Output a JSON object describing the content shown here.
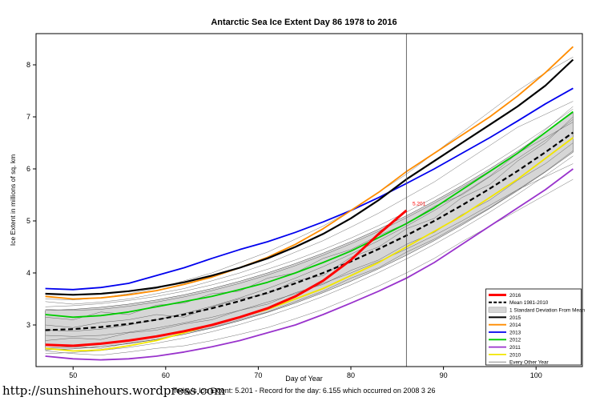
{
  "page": {
    "title": "Antarctic Sea Ice Extent Day 86 1978 to 2016",
    "footer": "Today's Ice Extent: 5.201  - Record for the day: 6.155 which occurred on 2008 3 26",
    "watermark_url": "http://sunshinehours.wordpress.com"
  },
  "chart_data": {
    "type": "line",
    "title": "Antarctic Sea Ice Extent Day 86 1978 to 2016",
    "xlabel": "Day of Year",
    "ylabel": "Ice Extent in millions of sq. km",
    "xlim": [
      46,
      105
    ],
    "ylim": [
      2.2,
      8.6
    ],
    "xticks": [
      50,
      60,
      70,
      80,
      90,
      100
    ],
    "yticks": [
      3,
      4,
      5,
      6,
      7,
      8
    ],
    "marker_line_x": 86,
    "annotation": {
      "text": "5.201",
      "x": 86.4,
      "y": 5.3,
      "color": "#ff0000"
    },
    "x": [
      47,
      50,
      53,
      56,
      59,
      62,
      65,
      68,
      71,
      74,
      77,
      80,
      83,
      86,
      89,
      92,
      95,
      98,
      101,
      104
    ],
    "mean": {
      "name": "Mean 1981-2010",
      "color": "#000000",
      "dashed": true,
      "values": [
        2.9,
        2.92,
        2.96,
        3.02,
        3.1,
        3.2,
        3.32,
        3.46,
        3.62,
        3.8,
        4.0,
        4.22,
        4.46,
        4.72,
        5.0,
        5.3,
        5.62,
        5.96,
        6.32,
        6.7
      ]
    },
    "band": {
      "name": "1 Standard Deviation From Mean",
      "std": 0.38,
      "fill": "#d6d6d6",
      "edge": "#444444"
    },
    "series": [
      {
        "name": "2016",
        "color": "#ff0000",
        "width": 3,
        "values": [
          2.62,
          2.6,
          2.64,
          2.7,
          2.78,
          2.88,
          3.0,
          3.15,
          3.32,
          3.55,
          3.85,
          4.25,
          4.75,
          5.201
        ]
      },
      {
        "name": "2015",
        "color": "#000000",
        "width": 2.2,
        "values": [
          3.6,
          3.58,
          3.6,
          3.65,
          3.72,
          3.82,
          3.95,
          4.1,
          4.28,
          4.5,
          4.75,
          5.05,
          5.4,
          5.8,
          6.15,
          6.5,
          6.85,
          7.2,
          7.6,
          8.1
        ]
      },
      {
        "name": "2014",
        "color": "#ff8c00",
        "width": 1.8,
        "values": [
          3.55,
          3.5,
          3.52,
          3.58,
          3.66,
          3.78,
          3.92,
          4.1,
          4.3,
          4.55,
          4.85,
          5.2,
          5.55,
          5.95,
          6.3,
          6.65,
          7.0,
          7.4,
          7.85,
          8.35
        ]
      },
      {
        "name": "2013",
        "color": "#0000ee",
        "width": 1.8,
        "values": [
          3.7,
          3.68,
          3.72,
          3.8,
          3.95,
          4.1,
          4.28,
          4.45,
          4.6,
          4.78,
          4.98,
          5.2,
          5.45,
          5.72,
          6.0,
          6.3,
          6.6,
          6.92,
          7.25,
          7.55
        ]
      },
      {
        "name": "2012",
        "color": "#00cc00",
        "width": 1.8,
        "values": [
          3.2,
          3.15,
          3.18,
          3.25,
          3.35,
          3.45,
          3.55,
          3.68,
          3.82,
          4.0,
          4.2,
          4.42,
          4.68,
          4.95,
          5.25,
          5.6,
          5.95,
          6.3,
          6.7,
          7.1
        ]
      },
      {
        "name": "2011",
        "color": "#9933cc",
        "width": 1.8,
        "values": [
          2.4,
          2.35,
          2.33,
          2.35,
          2.4,
          2.48,
          2.58,
          2.7,
          2.85,
          3.0,
          3.2,
          3.42,
          3.65,
          3.9,
          4.2,
          4.55,
          4.9,
          5.25,
          5.6,
          6.0
        ]
      },
      {
        "name": "2010",
        "color": "#f2e600",
        "width": 1.8,
        "values": [
          2.55,
          2.5,
          2.52,
          2.6,
          2.7,
          2.85,
          3.0,
          3.15,
          3.3,
          3.5,
          3.7,
          3.95,
          4.2,
          4.5,
          4.8,
          5.1,
          5.45,
          5.8,
          6.2,
          6.6
        ]
      }
    ],
    "other_years": {
      "name": "Every Other Year",
      "color": "#444444",
      "lines": [
        [
          3.35,
          3.37,
          3.41,
          3.47,
          3.55,
          3.65,
          3.77,
          3.91,
          4.07,
          4.25,
          4.45,
          4.67,
          4.91,
          5.17,
          5.45,
          5.75,
          6.07,
          6.41,
          6.77,
          7.15
        ],
        [
          2.45,
          2.47,
          2.51,
          2.57,
          2.65,
          2.75,
          2.87,
          3.01,
          3.17,
          3.35,
          3.55,
          3.77,
          4.01,
          4.27,
          4.55,
          4.85,
          5.17,
          5.51,
          5.87,
          6.25
        ],
        [
          3.15,
          3.1,
          3.25,
          3.2,
          3.38,
          3.42,
          3.6,
          3.65,
          3.9,
          4.0,
          4.28,
          4.45,
          4.72,
          4.95,
          5.28,
          5.5,
          5.85,
          6.2,
          6.55,
          6.95
        ],
        [
          2.7,
          2.75,
          2.72,
          2.85,
          2.9,
          3.02,
          3.1,
          3.28,
          3.4,
          3.62,
          3.78,
          4.05,
          4.25,
          4.55,
          4.78,
          5.12,
          5.4,
          5.78,
          6.1,
          6.5
        ],
        [
          3.45,
          3.4,
          3.44,
          3.5,
          3.6,
          3.7,
          3.85,
          4.0,
          4.18,
          4.4,
          4.62,
          4.88,
          5.15,
          5.45,
          5.75,
          6.1,
          6.45,
          6.8,
          7.05,
          7.3
        ],
        [
          2.8,
          2.78,
          2.8,
          2.86,
          2.94,
          3.04,
          3.15,
          3.28,
          3.44,
          3.6,
          3.8,
          4.0,
          4.22,
          4.46,
          4.72,
          5.0,
          5.3,
          5.6,
          5.85,
          6.1
        ],
        [
          3.0,
          2.95,
          3.05,
          3.1,
          3.2,
          3.15,
          3.35,
          3.5,
          3.6,
          3.85,
          3.95,
          4.3,
          4.5,
          4.85,
          5.05,
          5.45,
          5.7,
          6.15,
          6.5,
          7.0
        ],
        [
          2.55,
          2.58,
          2.55,
          2.65,
          2.72,
          2.85,
          2.95,
          3.1,
          3.25,
          3.45,
          3.65,
          3.9,
          4.1,
          4.4,
          4.65,
          4.95,
          5.25,
          5.6,
          5.95,
          6.35
        ],
        [
          3.3,
          3.28,
          3.3,
          3.36,
          3.44,
          3.54,
          3.66,
          3.8,
          3.96,
          4.14,
          4.34,
          4.56,
          4.8,
          5.06,
          5.34,
          5.64,
          5.96,
          6.3,
          6.6,
          6.9
        ],
        [
          2.9,
          2.88,
          2.92,
          3.0,
          3.1,
          3.22,
          3.36,
          3.52,
          3.7,
          3.9,
          4.12,
          4.36,
          4.62,
          4.9,
          5.2,
          5.52,
          5.86,
          6.3,
          6.75,
          7.2
        ],
        [
          3.5,
          3.48,
          3.52,
          3.6,
          3.7,
          3.85,
          4.0,
          4.2,
          4.4,
          4.65,
          4.9,
          5.2,
          5.55,
          5.9,
          6.3,
          6.7,
          7.1,
          7.5,
          7.85,
          8.15
        ],
        [
          2.5,
          2.45,
          2.42,
          2.48,
          2.55,
          2.6,
          2.7,
          2.82,
          2.95,
          3.12,
          3.3,
          3.52,
          3.75,
          4.0,
          4.28,
          4.6,
          4.9,
          5.2,
          5.5,
          5.8
        ]
      ]
    }
  },
  "legend": {
    "items": [
      {
        "label": "2016",
        "swatch": "line",
        "color": "#ff0000",
        "width": 3
      },
      {
        "label": "Mean 1981-2010",
        "swatch": "dashed",
        "color": "#000000",
        "width": 2
      },
      {
        "label": "1 Standard Deviation From Mean",
        "swatch": "box",
        "color": "#d6d6d6"
      },
      {
        "label": "2015",
        "swatch": "line",
        "color": "#000000",
        "width": 2
      },
      {
        "label": "2014",
        "swatch": "line",
        "color": "#ff8c00",
        "width": 1.8
      },
      {
        "label": "2013",
        "swatch": "line",
        "color": "#0000ee",
        "width": 1.8
      },
      {
        "label": "2012",
        "swatch": "line",
        "color": "#00cc00",
        "width": 1.8
      },
      {
        "label": "2011",
        "swatch": "line",
        "color": "#9933cc",
        "width": 1.8
      },
      {
        "label": "2010",
        "swatch": "line",
        "color": "#f2e600",
        "width": 1.8
      },
      {
        "label": "Every Other Year",
        "swatch": "thinline",
        "color": "#444444",
        "width": 0.6
      }
    ]
  }
}
